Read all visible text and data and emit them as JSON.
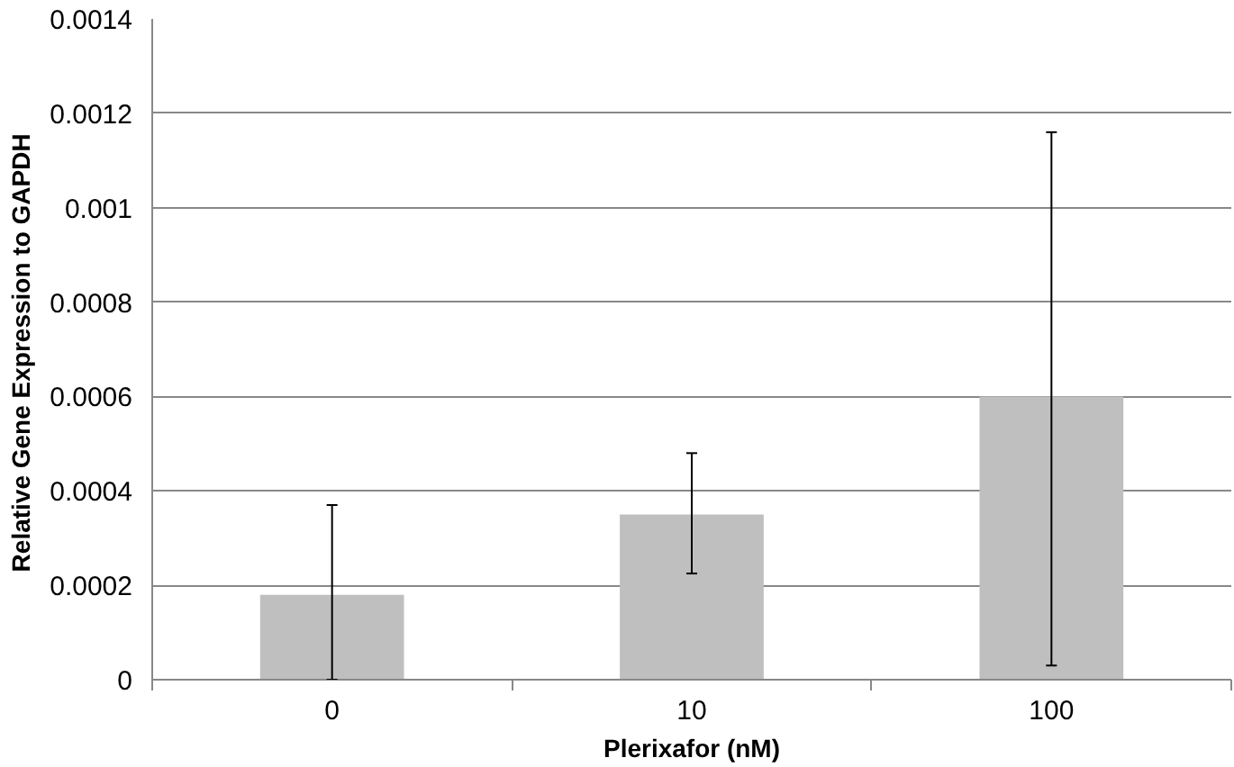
{
  "chart_data": {
    "type": "bar",
    "xlabel": "Plerixafor (nM)",
    "ylabel": "Relative Gene Expression  to GAPDH",
    "categories": [
      "0",
      "10",
      "100"
    ],
    "values": [
      0.00018,
      0.00035,
      0.0006
    ],
    "errors": [
      [
        0,
        0.00037
      ],
      [
        0.000225,
        0.00048
      ],
      [
        3e-05,
        0.00116
      ]
    ],
    "color": "#bfbfbf",
    "ylim": [
      0,
      0.0014
    ],
    "yticks": [
      0,
      0.0002,
      0.0004,
      0.0006,
      0.0008,
      0.001,
      0.0012,
      0.0014
    ],
    "grid": "y"
  }
}
